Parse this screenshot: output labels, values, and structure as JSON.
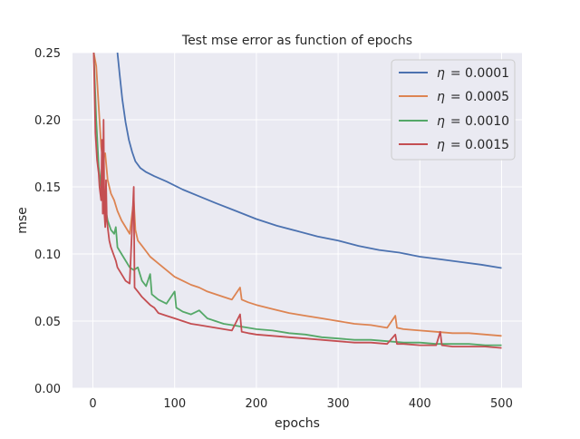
{
  "chart_data": {
    "type": "line",
    "title": "Test mse error as function of epochs",
    "xlabel": "epochs",
    "ylabel": "mse",
    "xlim": [
      -25,
      525
    ],
    "ylim": [
      0.0,
      0.25
    ],
    "x_ticks": [
      0,
      100,
      200,
      300,
      400,
      500
    ],
    "y_ticks": [
      0.0,
      0.05,
      0.1,
      0.15,
      0.2,
      0.25
    ],
    "x_tick_labels": [
      "0",
      "100",
      "200",
      "300",
      "400",
      "500"
    ],
    "y_tick_labels": [
      "0.00",
      "0.05",
      "0.10",
      "0.15",
      "0.20",
      "0.25"
    ],
    "grid": true,
    "legend_position": "top-right",
    "background_color": "#eaeaf2",
    "series": [
      {
        "name": "η = 0.0001",
        "legend_prefix": "η",
        "legend_value": "= 0.0001",
        "color": "#4c72b0",
        "points": [
          [
            30,
            0.25
          ],
          [
            33,
            0.232
          ],
          [
            36,
            0.215
          ],
          [
            40,
            0.198
          ],
          [
            44,
            0.185
          ],
          [
            48,
            0.176
          ],
          [
            52,
            0.169
          ],
          [
            58,
            0.164
          ],
          [
            65,
            0.161
          ],
          [
            75,
            0.158
          ],
          [
            90,
            0.154
          ],
          [
            110,
            0.148
          ],
          [
            130,
            0.143
          ],
          [
            150,
            0.138
          ],
          [
            175,
            0.132
          ],
          [
            200,
            0.126
          ],
          [
            225,
            0.121
          ],
          [
            250,
            0.117
          ],
          [
            275,
            0.113
          ],
          [
            300,
            0.11
          ],
          [
            325,
            0.106
          ],
          [
            350,
            0.103
          ],
          [
            375,
            0.101
          ],
          [
            400,
            0.098
          ],
          [
            425,
            0.096
          ],
          [
            450,
            0.094
          ],
          [
            475,
            0.092
          ],
          [
            500,
            0.0895
          ]
        ]
      },
      {
        "name": "η = 0.0005",
        "legend_prefix": "η",
        "legend_value": "= 0.0005",
        "color": "#dd8452",
        "points": [
          [
            1,
            0.25
          ],
          [
            4,
            0.24
          ],
          [
            7,
            0.21
          ],
          [
            10,
            0.18
          ],
          [
            12,
            0.17
          ],
          [
            15,
            0.175
          ],
          [
            18,
            0.155
          ],
          [
            22,
            0.145
          ],
          [
            26,
            0.14
          ],
          [
            30,
            0.132
          ],
          [
            35,
            0.125
          ],
          [
            40,
            0.12
          ],
          [
            45,
            0.115
          ],
          [
            50,
            0.14
          ],
          [
            52,
            0.118
          ],
          [
            55,
            0.11
          ],
          [
            60,
            0.106
          ],
          [
            65,
            0.102
          ],
          [
            70,
            0.098
          ],
          [
            80,
            0.093
          ],
          [
            90,
            0.088
          ],
          [
            100,
            0.083
          ],
          [
            110,
            0.08
          ],
          [
            120,
            0.077
          ],
          [
            130,
            0.075
          ],
          [
            140,
            0.072
          ],
          [
            150,
            0.07
          ],
          [
            160,
            0.068
          ],
          [
            170,
            0.066
          ],
          [
            180,
            0.075
          ],
          [
            182,
            0.066
          ],
          [
            190,
            0.064
          ],
          [
            200,
            0.062
          ],
          [
            220,
            0.059
          ],
          [
            240,
            0.056
          ],
          [
            260,
            0.054
          ],
          [
            280,
            0.052
          ],
          [
            300,
            0.05
          ],
          [
            320,
            0.048
          ],
          [
            340,
            0.047
          ],
          [
            360,
            0.045
          ],
          [
            370,
            0.054
          ],
          [
            372,
            0.045
          ],
          [
            380,
            0.044
          ],
          [
            400,
            0.043
          ],
          [
            420,
            0.042
          ],
          [
            440,
            0.041
          ],
          [
            460,
            0.041
          ],
          [
            480,
            0.04
          ],
          [
            500,
            0.039
          ]
        ]
      },
      {
        "name": "η = 0.0010",
        "legend_prefix": "η",
        "legend_value": "= 0.0010",
        "color": "#55a868",
        "points": [
          [
            1,
            0.25
          ],
          [
            4,
            0.2
          ],
          [
            7,
            0.165
          ],
          [
            10,
            0.15
          ],
          [
            12,
            0.16
          ],
          [
            15,
            0.135
          ],
          [
            18,
            0.125
          ],
          [
            22,
            0.118
          ],
          [
            26,
            0.115
          ],
          [
            28,
            0.12
          ],
          [
            30,
            0.105
          ],
          [
            35,
            0.1
          ],
          [
            40,
            0.095
          ],
          [
            45,
            0.09
          ],
          [
            50,
            0.088
          ],
          [
            55,
            0.09
          ],
          [
            60,
            0.08
          ],
          [
            65,
            0.076
          ],
          [
            70,
            0.085
          ],
          [
            72,
            0.07
          ],
          [
            80,
            0.066
          ],
          [
            90,
            0.063
          ],
          [
            100,
            0.072
          ],
          [
            102,
            0.06
          ],
          [
            110,
            0.057
          ],
          [
            120,
            0.055
          ],
          [
            130,
            0.058
          ],
          [
            140,
            0.052
          ],
          [
            150,
            0.05
          ],
          [
            160,
            0.048
          ],
          [
            170,
            0.047
          ],
          [
            180,
            0.046
          ],
          [
            190,
            0.045
          ],
          [
            200,
            0.044
          ],
          [
            220,
            0.043
          ],
          [
            240,
            0.041
          ],
          [
            260,
            0.04
          ],
          [
            280,
            0.038
          ],
          [
            300,
            0.037
          ],
          [
            320,
            0.036
          ],
          [
            340,
            0.036
          ],
          [
            360,
            0.035
          ],
          [
            380,
            0.034
          ],
          [
            400,
            0.034
          ],
          [
            420,
            0.033
          ],
          [
            440,
            0.033
          ],
          [
            460,
            0.033
          ],
          [
            480,
            0.032
          ],
          [
            500,
            0.032
          ]
        ]
      },
      {
        "name": "η = 0.0015",
        "legend_prefix": "η",
        "legend_value": "= 0.0015",
        "color": "#c44e52",
        "points": [
          [
            1,
            0.25
          ],
          [
            3,
            0.19
          ],
          [
            5,
            0.17
          ],
          [
            7,
            0.16
          ],
          [
            8,
            0.15
          ],
          [
            10,
            0.14
          ],
          [
            11,
            0.185
          ],
          [
            12,
            0.13
          ],
          [
            13,
            0.2
          ],
          [
            14,
            0.13
          ],
          [
            15,
            0.12
          ],
          [
            16,
            0.155
          ],
          [
            17,
            0.125
          ],
          [
            18,
            0.12
          ],
          [
            20,
            0.11
          ],
          [
            22,
            0.105
          ],
          [
            25,
            0.1
          ],
          [
            28,
            0.095
          ],
          [
            30,
            0.09
          ],
          [
            35,
            0.085
          ],
          [
            40,
            0.08
          ],
          [
            45,
            0.078
          ],
          [
            50,
            0.15
          ],
          [
            51,
            0.075
          ],
          [
            55,
            0.072
          ],
          [
            60,
            0.068
          ],
          [
            65,
            0.065
          ],
          [
            70,
            0.062
          ],
          [
            75,
            0.06
          ],
          [
            80,
            0.056
          ],
          [
            90,
            0.054
          ],
          [
            100,
            0.052
          ],
          [
            110,
            0.05
          ],
          [
            120,
            0.048
          ],
          [
            130,
            0.047
          ],
          [
            140,
            0.046
          ],
          [
            150,
            0.045
          ],
          [
            160,
            0.044
          ],
          [
            170,
            0.043
          ],
          [
            180,
            0.055
          ],
          [
            182,
            0.042
          ],
          [
            190,
            0.041
          ],
          [
            200,
            0.04
          ],
          [
            220,
            0.039
          ],
          [
            240,
            0.038
          ],
          [
            260,
            0.037
          ],
          [
            280,
            0.036
          ],
          [
            300,
            0.035
          ],
          [
            320,
            0.034
          ],
          [
            340,
            0.034
          ],
          [
            360,
            0.033
          ],
          [
            370,
            0.04
          ],
          [
            372,
            0.033
          ],
          [
            380,
            0.033
          ],
          [
            400,
            0.032
          ],
          [
            420,
            0.032
          ],
          [
            425,
            0.042
          ],
          [
            427,
            0.032
          ],
          [
            440,
            0.031
          ],
          [
            460,
            0.031
          ],
          [
            480,
            0.031
          ],
          [
            500,
            0.03
          ]
        ]
      }
    ]
  }
}
